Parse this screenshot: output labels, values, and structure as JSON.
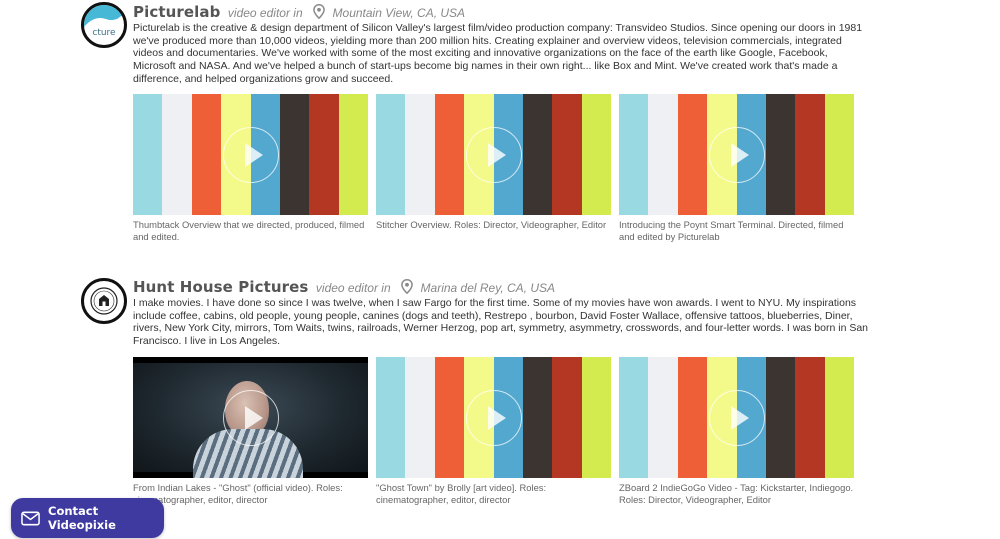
{
  "listings": [
    {
      "company": "Picturelab",
      "role": "video editor in",
      "location": "Mountain View, CA, USA",
      "avatar_text": "cture",
      "bio": "Picturelab is the creative & design department of Silicon Valley's largest film/video production company: Transvideo Studios. Since opening our doors in 1981 we've produced more than 10,000 videos, yielding more than 200 million hits. Creating explainer and overview videos, television commercials, integrated videos and documentaries. We've worked with some of the most exciting and innovative organizations on the face of the earth like Google, Facebook, Microsoft and NASA. And we've helped a bunch of start-ups become big names in their own right... like Box and Mint. We've created work that's made a difference, and helped organizations grow and succeed.",
      "videos": [
        {
          "caption": "Thumbtack Overview that we directed, produced, filmed and edited."
        },
        {
          "caption": "Stitcher Overview. Roles: Director, Videographer, Editor"
        },
        {
          "caption": "Introducing the Poynt Smart Terminal. Directed, filmed and edited by Picturelab"
        }
      ]
    },
    {
      "company": "Hunt House Pictures",
      "role": "video editor in",
      "location": "Marina del Rey, CA, USA",
      "bio": "I make movies. I have done so since I was twelve, when I saw Fargo for the first time. Some of my movies have won awards. I went to NYU. My inspirations include coffee, cabins, old people, young people, canines (dogs and teeth), Restrepo , bourbon, David Foster Wallace, offensive tattoos, blueberries, Diner, rivers, New York City, mirrors, Tom Waits, twins, railroads, Werner Herzog, pop art, symmetry, asymmetry, crosswords, and four-letter words. I was born in San Francisco. I live in Los Angeles.",
      "videos": [
        {
          "caption": "From Indian Lakes - \"Ghost\" (official video). Roles: cinematographer, editor, director"
        },
        {
          "caption": "\"Ghost Town\" by Brolly [art video]. Roles: cinematographer, editor, director"
        },
        {
          "caption": "ZBoard 2 IndieGoGo Video - Tag: Kickstarter, Indiegogo. Roles: Director, Videographer, Editor"
        }
      ]
    }
  ],
  "placeholder_colors": [
    "#99d9e2",
    "#eef0f4",
    "#ee5e37",
    "#f4fa89",
    "#53a8d0",
    "#3c3431",
    "#b33722",
    "#d4eb4f"
  ],
  "contact_button": {
    "label": "Contact Videopixie"
  }
}
